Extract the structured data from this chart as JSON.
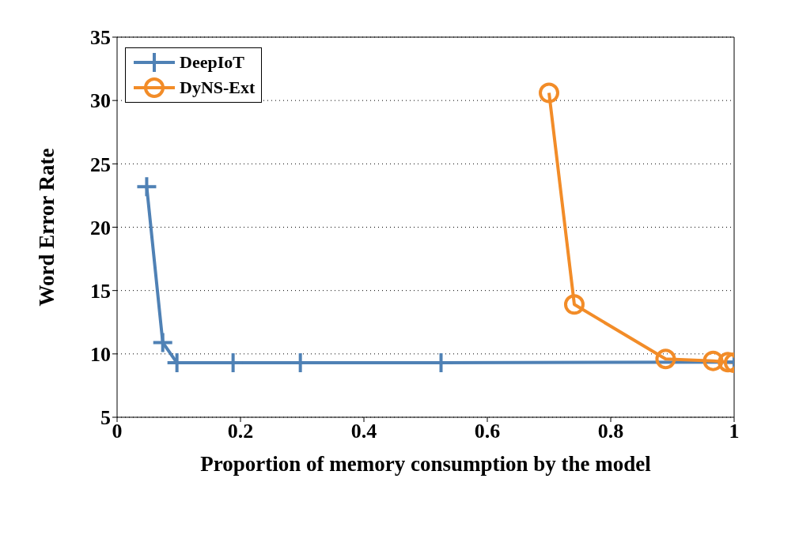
{
  "chart_data": {
    "type": "line",
    "xlabel": "Proportion of memory consumption by the model",
    "ylabel": "Word Error Rate",
    "xlim": [
      0,
      1
    ],
    "xticks": [
      0,
      0.2,
      0.4,
      0.6,
      0.8,
      1
    ],
    "ylim": [
      5,
      35
    ],
    "yticks": [
      5,
      10,
      15,
      20,
      25,
      30,
      35
    ],
    "grid": "y",
    "legend": "top left",
    "line_style": "solid",
    "series": [
      {
        "name": "DeepIoT",
        "color": "#4f81b5",
        "marker": "cross",
        "x": [
          0.048,
          0.074,
          0.097,
          0.188,
          0.297,
          0.525,
          1.0
        ],
        "values": [
          23.2,
          10.9,
          9.3,
          9.3,
          9.3,
          9.3,
          9.35
        ]
      },
      {
        "name": "DyNS-Ext",
        "color": "#f28c28",
        "marker": "circle",
        "x": [
          0.7,
          0.741,
          0.889,
          0.966,
          0.99,
          1.0
        ],
        "values": [
          30.6,
          13.9,
          9.6,
          9.45,
          9.35,
          9.3
        ]
      }
    ]
  }
}
